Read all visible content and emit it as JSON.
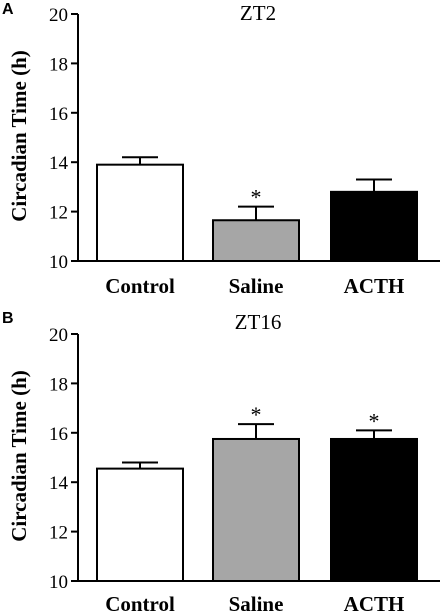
{
  "chart_data": [
    {
      "panel": "A",
      "type": "bar",
      "title": "ZT2",
      "ylabel": "Circadian Time (h)",
      "xlabel": "",
      "categories": [
        "Control",
        "Saline",
        "ACTH"
      ],
      "values": [
        13.9,
        11.65,
        12.8
      ],
      "errors": [
        0.3,
        0.55,
        0.5
      ],
      "significance": [
        "",
        "*",
        ""
      ],
      "colors": [
        "#ffffff",
        "#a6a6a6",
        "#000000"
      ],
      "ylim": [
        10,
        20
      ],
      "yticks": [
        10,
        12,
        14,
        16,
        18,
        20
      ],
      "grid": false,
      "legend": "none"
    },
    {
      "panel": "B",
      "type": "bar",
      "title": "ZT16",
      "ylabel": "Circadian Time (h)",
      "xlabel": "",
      "categories": [
        "Control",
        "Saline",
        "ACTH"
      ],
      "values": [
        14.55,
        15.75,
        15.75
      ],
      "errors": [
        0.25,
        0.6,
        0.35
      ],
      "significance": [
        "",
        "*",
        "*"
      ],
      "colors": [
        "#ffffff",
        "#a6a6a6",
        "#000000"
      ],
      "ylim": [
        10,
        20
      ],
      "yticks": [
        10,
        12,
        14,
        16,
        18,
        20
      ],
      "grid": false,
      "legend": "none"
    }
  ]
}
